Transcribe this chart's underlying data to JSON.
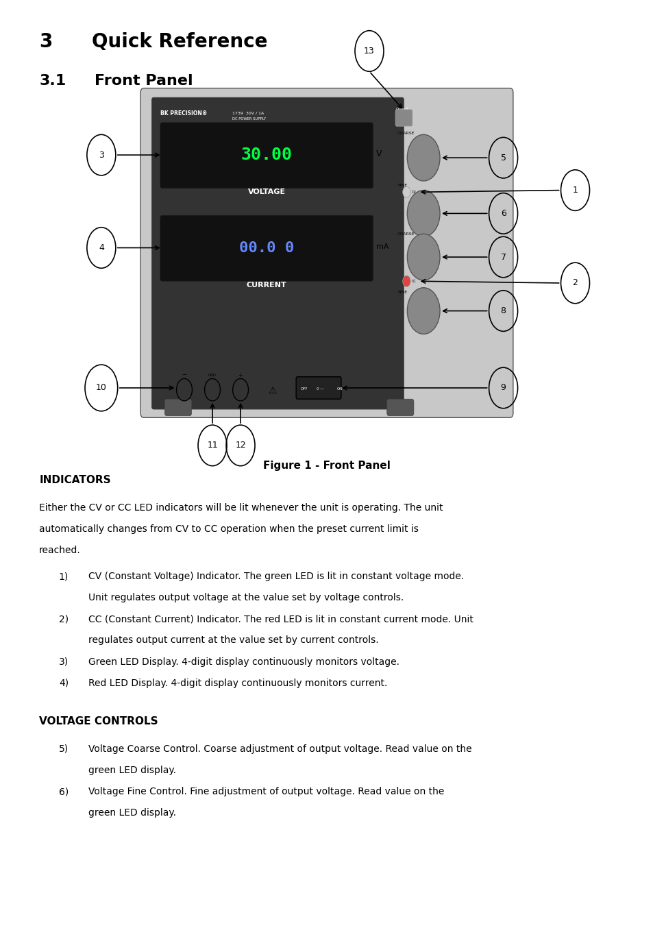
{
  "title_num": "3",
  "title_text": "Quick Reference",
  "subtitle_num": "3.1",
  "subtitle_text": "Front Panel",
  "figure_caption": "Figure 1 - Front Panel",
  "indicators_header": "INDICATORS",
  "indicators_intro": "Either the CV or CC LED indicators will be lit whenever the unit is operating. The unit\nautomatically changes from CV to CC operation when the preset current limit is\nreached.",
  "indicators_items": [
    "CV (Constant Voltage) Indicator. The green LED is lit in constant voltage mode.\nUnit regulates output voltage at the value set by voltage controls.",
    "CC (Constant Current) Indicator. The red LED is lit in constant current mode. Unit\nregulates output current at the value set by current controls.",
    "Green LED Display. 4-digit display continuously monitors voltage.",
    "Red LED Display. 4-digit display continuously monitors current."
  ],
  "voltage_header": "VOLTAGE CONTROLS",
  "voltage_items": [
    "Voltage Coarse Control. Coarse adjustment of output voltage. Read value on the\ngreen LED display.",
    "Voltage Fine Control. Fine adjustment of output voltage. Read value on the\ngreen LED display."
  ],
  "bg_color": "#ffffff",
  "text_color": "#000000",
  "panel_bg": "#c8c8c8",
  "panel_display_bg": "#1a1a1a"
}
